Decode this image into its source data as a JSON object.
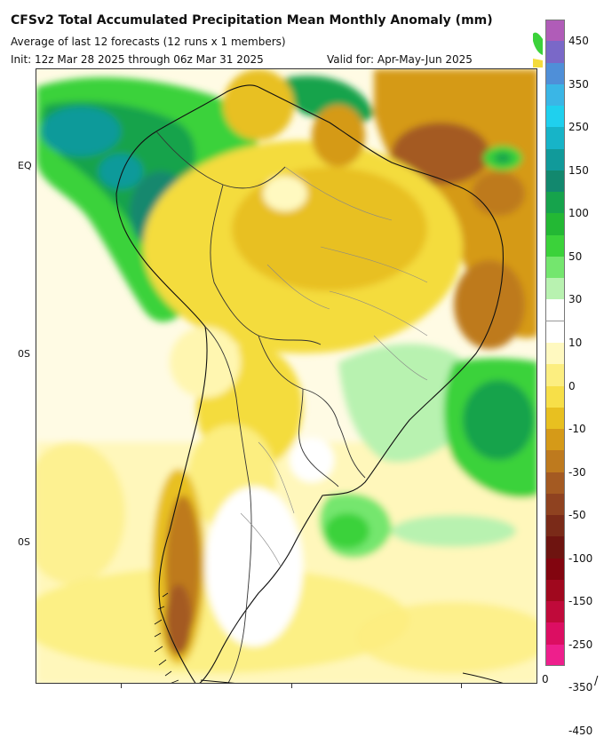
{
  "header": {
    "title": "CFSv2 Total Accumulated Precipitation Mean Monthly Anomaly (mm)",
    "subtitle": "Average of last 12 forecasts (12 runs x 1 members)",
    "init": "Init: 12z Mar 28 2025 through 06z Mar 31 2025",
    "valid": "Valid for: Apr-May-Jun 2025"
  },
  "map": {
    "lat_labels": [
      "EQ",
      "0S",
      "0S"
    ],
    "corner_mark": "/"
  },
  "legend": {
    "labels": [
      "450",
      "350",
      "250",
      "150",
      "100",
      "50",
      "30",
      "10",
      "0",
      "-10",
      "-30",
      "-50",
      "-100",
      "-150",
      "-250",
      "-350",
      "-450"
    ],
    "bottom_label": "0",
    "colors": [
      "#b05cb8",
      "#7a68c8",
      "#4f8fd8",
      "#3ab6e6",
      "#1fd0ee",
      "#17b4c8",
      "#119a9a",
      "#12886e",
      "#16a34c",
      "#23b834",
      "#3bd23a",
      "#74e66e",
      "#b8f2b0",
      "#ffffff",
      "#ffffff",
      "#fff9c0",
      "#fcee80",
      "#f7df48",
      "#e8c020",
      "#d59a18",
      "#be7a1e",
      "#a45a22",
      "#8f4220",
      "#7a2a18",
      "#6e1410",
      "#82050f",
      "#a0081e",
      "#c00a3a",
      "#dc0e62",
      "#ee1f8c"
    ]
  },
  "palette": {
    "wet_light": "#b8f2b0",
    "wet_mid": "#3bd23a",
    "wet_dark": "#119a9a",
    "dry_light": "#fff6b0",
    "dry_mid": "#f4dc3c",
    "dry_dark": "#c08a22",
    "dry_deep": "#8c5a2a"
  }
}
